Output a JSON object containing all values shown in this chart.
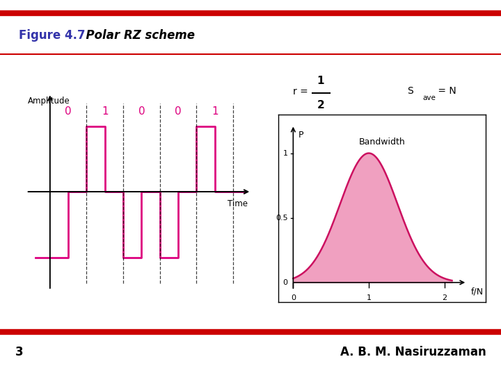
{
  "title": "Figure 4.7",
  "title_italic": "  Polar RZ scheme",
  "title_color": "#3333aa",
  "bg_color": "#ffffff",
  "red_line_color": "#cc0000",
  "signal_color": "#dd007f",
  "bits": [
    "0",
    "1",
    "0",
    "0",
    "1"
  ],
  "bit_color": "#dd007f",
  "ylabel_waveform": "Amplitude",
  "xlabel_waveform": "Time",
  "bandwidth_curve_color": "#cc1060",
  "bandwidth_fill_color": "#f0a0c0",
  "yellow_bg": "#ffff00",
  "bw_label": "Bandwidth",
  "p_label": "P",
  "fn_label": "f/N",
  "footer_num": "3",
  "footer_text": "A. B. M. Nasiruzzaman",
  "footer_color": "#000000",
  "sigma": 0.38
}
